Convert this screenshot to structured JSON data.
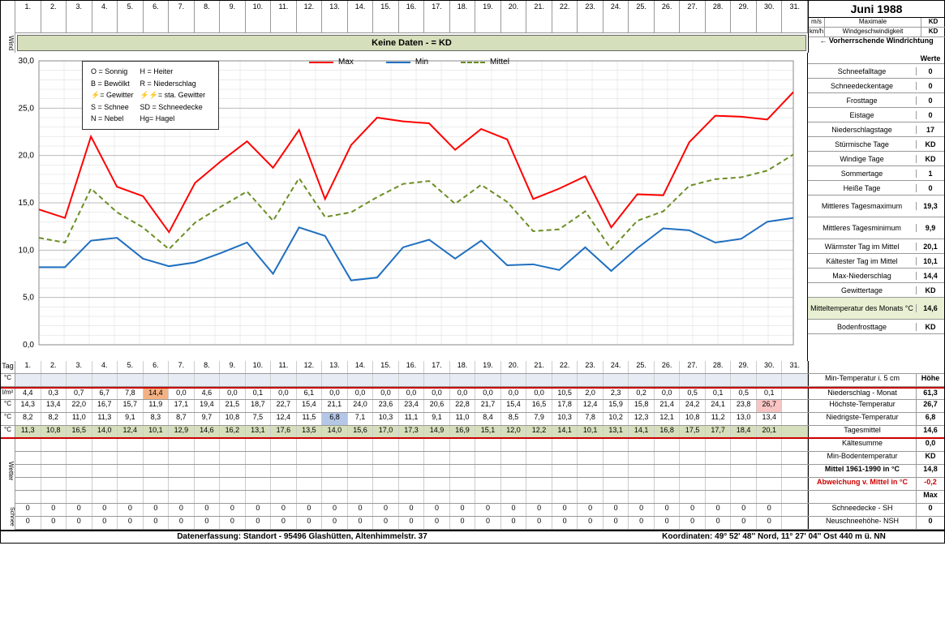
{
  "title": "Juni 1988",
  "days": [
    "1.",
    "2.",
    "3.",
    "4.",
    "5.",
    "6.",
    "7.",
    "8.",
    "9.",
    "10.",
    "11.",
    "12.",
    "13.",
    "14.",
    "15.",
    "16.",
    "17.",
    "18.",
    "19.",
    "20.",
    "21.",
    "22.",
    "23.",
    "24.",
    "25.",
    "26.",
    "27.",
    "28.",
    "29.",
    "30.",
    "31."
  ],
  "wind": {
    "banner": "Keine Daten -  = KD",
    "label": "Wind",
    "rows": [
      {
        "unit": "m/s",
        "label": "Maximale",
        "val": "KD"
      },
      {
        "unit": "km/h",
        "label": "Windgeschwindigkeit",
        "val": "KD"
      }
    ],
    "direction": "← Vorherrschende Windrichtung"
  },
  "legend_terms": [
    [
      "O = Sonnig",
      "H = Heiter"
    ],
    [
      "B = Bewölkt",
      "R = Niederschlag"
    ],
    [
      "⚡= Gewitter",
      "⚡⚡= sta. Gewitter"
    ],
    [
      "S = Schnee",
      "SD = Schneedecke"
    ],
    [
      "N = Nebel",
      "Hg= Hagel"
    ]
  ],
  "chart": {
    "type": "line",
    "ylim": [
      0,
      30
    ],
    "yticks": [
      "0,0",
      "5,0",
      "10,0",
      "15,0",
      "20,0",
      "25,0",
      "30,0"
    ],
    "grid_color": "#d9d9d9",
    "background": "#ffffff",
    "series": [
      {
        "name": "Max",
        "color": "#ff0000",
        "width": 2,
        "dash": "none",
        "values": [
          14.3,
          13.4,
          22.0,
          16.7,
          15.7,
          11.9,
          17.1,
          19.4,
          21.5,
          18.7,
          22.7,
          15.4,
          21.1,
          24.0,
          23.6,
          23.4,
          20.6,
          22.8,
          21.7,
          15.4,
          16.5,
          17.8,
          12.4,
          15.9,
          15.8,
          21.4,
          24.2,
          24.1,
          23.8,
          26.7
        ]
      },
      {
        "name": "Min",
        "color": "#1f6fc0",
        "width": 2,
        "dash": "none",
        "values": [
          8.2,
          8.2,
          11.0,
          11.3,
          9.1,
          8.3,
          8.7,
          9.7,
          10.8,
          7.5,
          12.4,
          11.5,
          6.8,
          7.1,
          10.3,
          11.1,
          9.1,
          11.0,
          8.4,
          8.5,
          7.9,
          10.3,
          7.8,
          10.2,
          12.3,
          12.1,
          10.8,
          11.2,
          13.0,
          13.4
        ]
      },
      {
        "name": "Mittel",
        "color": "#6b8e23",
        "width": 2,
        "dash": "6,4",
        "values": [
          11.3,
          10.8,
          16.5,
          14.0,
          12.4,
          10.1,
          12.9,
          14.6,
          16.2,
          13.1,
          17.6,
          13.5,
          14.0,
          15.6,
          17.0,
          17.3,
          14.9,
          16.9,
          15.1,
          12.0,
          12.2,
          14.1,
          10.1,
          13.1,
          14.1,
          16.8,
          17.5,
          17.7,
          18.4,
          20.1
        ]
      }
    ]
  },
  "side_stats_top": {
    "werte_label": "Werte"
  },
  "side_stats": [
    {
      "label": "Schneefalltage",
      "val": "0"
    },
    {
      "label": "Schneedeckentage",
      "val": "0"
    },
    {
      "label": "Frosttage",
      "val": "0"
    },
    {
      "label": "Eistage",
      "val": "0"
    },
    {
      "label": "Niederschlagstage",
      "val": "17"
    },
    {
      "label": "Stürmische Tage",
      "val": "KD"
    },
    {
      "label": "Windige Tage",
      "val": "KD"
    },
    {
      "label": "Sommertage",
      "val": "1"
    },
    {
      "label": "Heiße Tage",
      "val": "0"
    },
    {
      "label": "Mittleres Tagesmaximum",
      "val": "19,3",
      "tall": true
    },
    {
      "label": "Mittleres Tagesminimum",
      "val": "9,9",
      "tall": true
    },
    {
      "label": "Wärmster Tag im Mittel",
      "val": "20,1"
    },
    {
      "label": "Kältester Tag im Mittel",
      "val": "10,1"
    },
    {
      "label": "Max-Niederschlag",
      "val": "14,4"
    },
    {
      "label": "Gewittertage",
      "val": "KD"
    },
    {
      "label": "Mitteltemperatur des Monats °C",
      "val": "14,6",
      "hl": true,
      "tall": true
    },
    {
      "label": "Bodenfrosttage",
      "val": "KD"
    }
  ],
  "tag_label": "Tag",
  "data_rows": [
    {
      "unit": "°C",
      "cells": [],
      "side_l": "Min-Temperatur i. 5 cm",
      "side_r": "Höhe",
      "cls": "hl-gray"
    },
    {
      "unit": "l/m²",
      "cells": [
        "4,4",
        "0,3",
        "0,7",
        "6,7",
        "7,8",
        "14,4",
        "0,0",
        "4,6",
        "0,0",
        "0,1",
        "0,0",
        "6,1",
        "0,0",
        "0,0",
        "0,0",
        "0,0",
        "0,0",
        "0,0",
        "0,0",
        "0,0",
        "0,0",
        "10,5",
        "2,0",
        "2,3",
        "0,2",
        "0,0",
        "0,5",
        "0,1",
        "0,5",
        "0,1"
      ],
      "hl_idx": {
        "5": "hl-orange"
      },
      "side_l": "Niederschlag - Monat",
      "side_r": "61,3",
      "redtop": true
    },
    {
      "unit": "°C",
      "cells": [
        "14,3",
        "13,4",
        "22,0",
        "16,7",
        "15,7",
        "11,9",
        "17,1",
        "19,4",
        "21,5",
        "18,7",
        "22,7",
        "15,4",
        "21,1",
        "24,0",
        "23,6",
        "23,4",
        "20,6",
        "22,8",
        "21,7",
        "15,4",
        "16,5",
        "17,8",
        "12,4",
        "15,9",
        "15,8",
        "21,4",
        "24,2",
        "24,1",
        "23,8",
        "26,7"
      ],
      "hl_idx": {
        "29": "hl-pink"
      },
      "side_l": "Höchste-Temperatur",
      "side_r": "26,7"
    },
    {
      "unit": "°C",
      "cells": [
        "8,2",
        "8,2",
        "11,0",
        "11,3",
        "9,1",
        "8,3",
        "8,7",
        "9,7",
        "10,8",
        "7,5",
        "12,4",
        "11,5",
        "6,8",
        "7,1",
        "10,3",
        "11,1",
        "9,1",
        "11,0",
        "8,4",
        "8,5",
        "7,9",
        "10,3",
        "7,8",
        "10,2",
        "12,3",
        "12,1",
        "10,8",
        "11,2",
        "13,0",
        "13,4"
      ],
      "hl_idx": {
        "12": "hl-blue"
      },
      "side_l": "Niedrigste-Temperatur",
      "side_r": "6,8"
    },
    {
      "unit": "°C",
      "cells": [
        "11,3",
        "10,8",
        "16,5",
        "14,0",
        "12,4",
        "10,1",
        "12,9",
        "14,6",
        "16,2",
        "13,1",
        "17,6",
        "13,5",
        "14,0",
        "15,6",
        "17,0",
        "17,3",
        "14,9",
        "16,9",
        "15,1",
        "12,0",
        "12,2",
        "14,1",
        "10,1",
        "13,1",
        "14,1",
        "16,8",
        "17,5",
        "17,7",
        "18,4",
        "20,1"
      ],
      "cls": "hl-green",
      "side_l": "Tagesmittel",
      "side_r": "14,6",
      "redbot": true
    }
  ],
  "extra_rows": [
    {
      "side_l": "Kältesumme",
      "side_r": "0,0"
    },
    {
      "side_l": "Min-Bodentemperatur",
      "side_r": "KD"
    },
    {
      "side_l": "Mittel 1961-1990 in °C",
      "side_r": "14,8",
      "bold": true
    },
    {
      "side_l": "Abweichung v. Mittel in °C",
      "side_r": "-0,2",
      "red": true
    },
    {
      "side_l": "",
      "side_r": "Max",
      "bold": true
    }
  ],
  "wetter_label": "Wetter",
  "schnee_rows": [
    {
      "cells": [
        "0",
        "0",
        "0",
        "0",
        "0",
        "0",
        "0",
        "0",
        "0",
        "0",
        "0",
        "0",
        "0",
        "0",
        "0",
        "0",
        "0",
        "0",
        "0",
        "0",
        "0",
        "0",
        "0",
        "0",
        "0",
        "0",
        "0",
        "0",
        "0",
        "0"
      ],
      "side_l": "Schneedecke -  SH",
      "side_r": "0"
    },
    {
      "cells": [
        "0",
        "0",
        "0",
        "0",
        "0",
        "0",
        "0",
        "0",
        "0",
        "0",
        "0",
        "0",
        "0",
        "0",
        "0",
        "0",
        "0",
        "0",
        "0",
        "0",
        "0",
        "0",
        "0",
        "0",
        "0",
        "0",
        "0",
        "0",
        "0",
        "0"
      ],
      "side_l": "Neuschneehöhe- NSH",
      "side_r": "0"
    }
  ],
  "schnee_label": "Schnee",
  "footer": {
    "left": "Datenerfassung:  Standort -  95496  Glashütten, Altenhimmelstr. 37",
    "right": "Koordinaten:  49° 52' 48'' Nord,   11° 27' 04'' Ost    440 m ü. NN"
  }
}
